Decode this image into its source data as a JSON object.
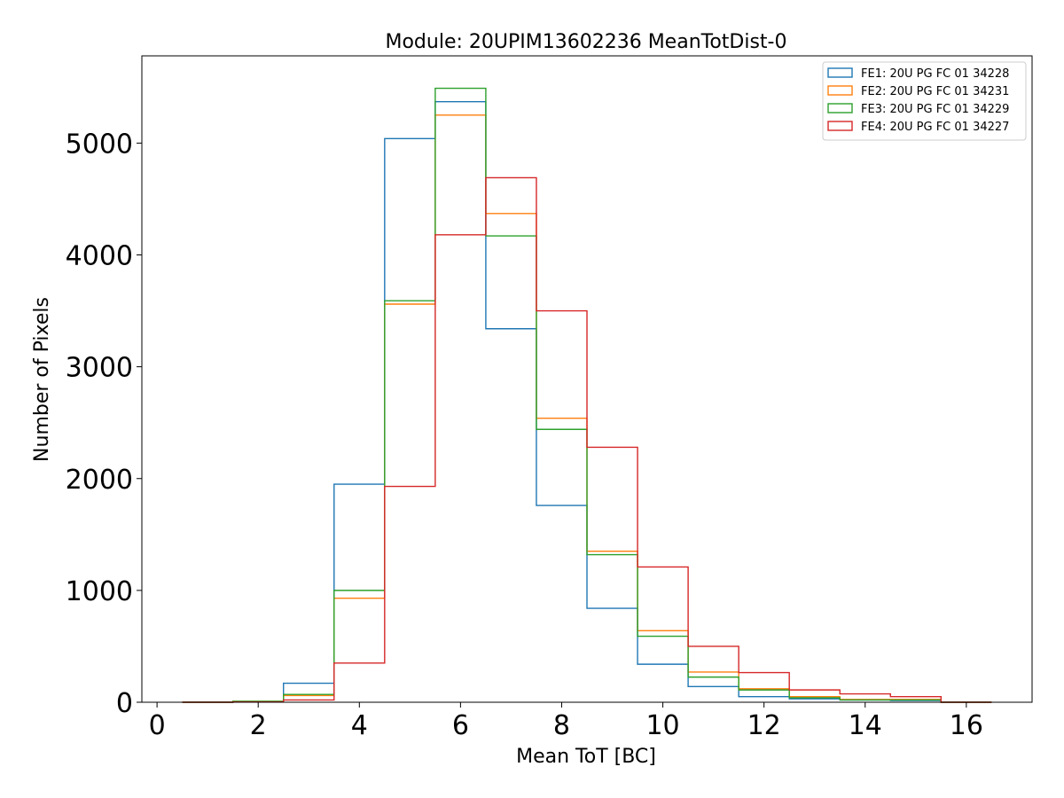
{
  "chart_data": {
    "type": "histogram",
    "title": "Module: 20UPIM13602236 MeanTotDist-0",
    "xlabel": "Mean ToT [BC]",
    "ylabel": "Number of Pixels",
    "xlim": [
      -0.3,
      17.3
    ],
    "ylim": [
      0,
      5780
    ],
    "x_ticks": [
      0,
      2,
      4,
      6,
      8,
      10,
      12,
      14,
      16
    ],
    "y_ticks": [
      0,
      1000,
      2000,
      3000,
      4000,
      5000
    ],
    "bin_edges": [
      0.5,
      1.5,
      2.5,
      3.5,
      4.5,
      5.5,
      6.5,
      7.5,
      8.5,
      9.5,
      10.5,
      11.5,
      12.5,
      13.5,
      14.5,
      15.5,
      16.5
    ],
    "histtype": "step",
    "legend_position": "top-right",
    "grid": false,
    "series": [
      {
        "name": "FE1: 20U PG FC 01 34228",
        "color": "#1f77b4",
        "values": [
          0,
          5,
          170,
          1950,
          5040,
          5370,
          3340,
          1760,
          840,
          340,
          140,
          50,
          30,
          20,
          15,
          0
        ]
      },
      {
        "name": "FE2: 20U PG FC 01 34231",
        "color": "#ff7f0e",
        "values": [
          0,
          8,
          60,
          930,
          3560,
          5250,
          4370,
          2540,
          1350,
          640,
          270,
          120,
          50,
          25,
          25,
          0
        ]
      },
      {
        "name": "FE3: 20U PG FC 01 34229",
        "color": "#2ca02c",
        "values": [
          0,
          8,
          70,
          1000,
          3590,
          5490,
          4170,
          2440,
          1320,
          590,
          225,
          110,
          40,
          20,
          20,
          0
        ]
      },
      {
        "name": "FE4: 20U PG FC 01 34227",
        "color": "#d62728",
        "values": [
          0,
          2,
          20,
          350,
          1930,
          4180,
          4690,
          3500,
          2280,
          1210,
          500,
          265,
          110,
          75,
          50,
          0
        ]
      }
    ]
  }
}
